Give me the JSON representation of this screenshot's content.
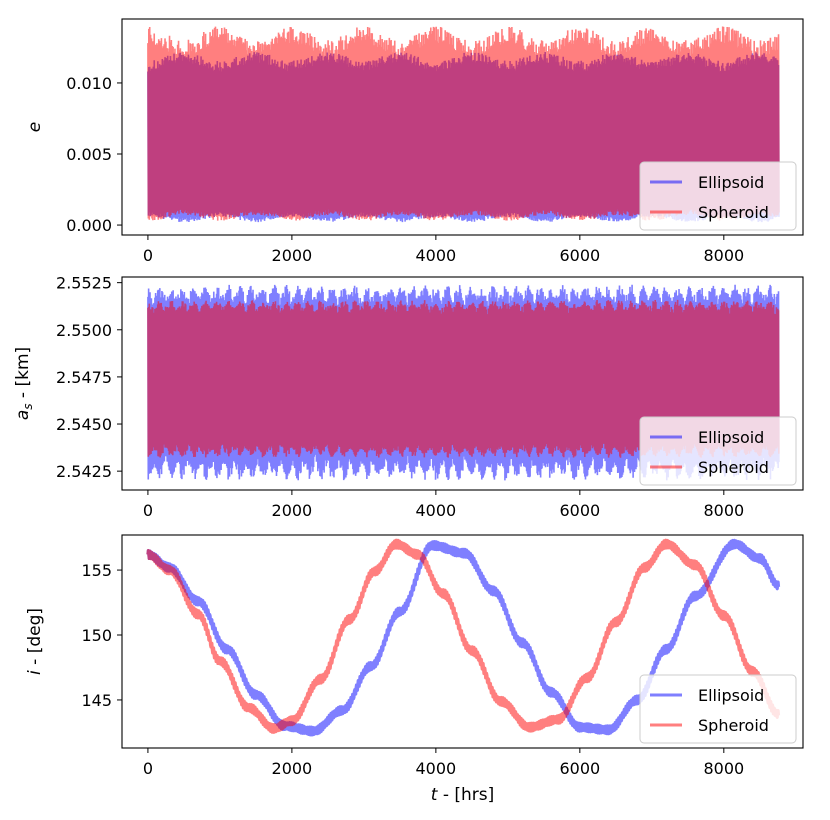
{
  "chart_data": [
    {
      "id": "eccentricity",
      "type": "line",
      "xlabel": "",
      "ylabel": "e",
      "xlim": [
        -360,
        9100
      ],
      "ylim": [
        -0.0007,
        0.0145
      ],
      "x_ticks": [
        0,
        2000,
        4000,
        6000,
        8000
      ],
      "x_tick_labels": [
        "0",
        "2000",
        "4000",
        "6000",
        "8000"
      ],
      "y_ticks": [
        0.0,
        0.005,
        0.01
      ],
      "y_tick_labels": [
        "0.000",
        "0.005",
        "0.010"
      ],
      "legend_position": "lower-right",
      "band_model": {
        "t_end": 8760,
        "period": 1.6,
        "beat_period": 1000,
        "samples": 700
      },
      "series": [
        {
          "name": "Ellipsoid",
          "color": "#0000ff",
          "alpha": 0.5,
          "min_lo": 0.0002,
          "min_hi": 0.0009,
          "max_lo": 0.0108,
          "max_hi": 0.0122,
          "phase": 0.5
        },
        {
          "name": "Spheroid",
          "color": "#ff0000",
          "alpha": 0.5,
          "min_lo": 0.0003,
          "min_hi": 0.0011,
          "max_lo": 0.0118,
          "max_hi": 0.014,
          "phase": 0.0
        }
      ]
    },
    {
      "id": "semi-major-axis",
      "type": "line",
      "xlabel": "",
      "ylabel": "a_s - [km]",
      "xlim": [
        -360,
        9100
      ],
      "ylim": [
        2.5415,
        2.5528
      ],
      "x_ticks": [
        0,
        2000,
        4000,
        6000,
        8000
      ],
      "x_tick_labels": [
        "0",
        "2000",
        "4000",
        "6000",
        "8000"
      ],
      "y_ticks": [
        2.5425,
        2.545,
        2.5475,
        2.55,
        2.5525
      ],
      "y_tick_labels": [
        "2.5425",
        "2.5450",
        "2.5475",
        "2.5500",
        "2.5525"
      ],
      "legend_position": "lower-right",
      "band_model": {
        "t_end": 8760,
        "period": 1.6,
        "beat_period": 160,
        "samples": 900
      },
      "series": [
        {
          "name": "Ellipsoid",
          "color": "#0000ff",
          "alpha": 0.5,
          "max_lo": 2.5512,
          "max_hi": 2.5524,
          "min_lo": 2.542,
          "min_hi": 2.5434
        },
        {
          "name": "Spheroid",
          "color": "#ff0000",
          "alpha": 0.5,
          "max_lo": 2.5508,
          "max_hi": 2.5516,
          "min_lo": 2.5432,
          "min_hi": 2.544
        }
      ]
    },
    {
      "id": "inclination",
      "type": "line",
      "xlabel": "t - [hrs]",
      "ylabel": "i - [deg]",
      "xlim": [
        -360,
        9100
      ],
      "ylim": [
        141.3,
        157.7
      ],
      "x_ticks": [
        0,
        2000,
        4000,
        6000,
        8000
      ],
      "x_tick_labels": [
        "0",
        "2000",
        "4000",
        "6000",
        "8000"
      ],
      "y_ticks": [
        145,
        150,
        155
      ],
      "y_tick_labels": [
        "145",
        "150",
        "155"
      ],
      "legend_position": "lower-right",
      "series": [
        {
          "name": "Ellipsoid",
          "color": "#0000ff",
          "alpha": 0.5,
          "x": [
            0,
            300,
            700,
            1100,
            1500,
            1900,
            2300,
            2700,
            3100,
            3500,
            3950,
            4400,
            4800,
            5200,
            5600,
            6000,
            6400,
            6800,
            7200,
            7600,
            8150,
            8500,
            8760
          ],
          "y": [
            156.2,
            155.2,
            152.6,
            148.9,
            145.4,
            143.0,
            142.6,
            144.2,
            147.6,
            151.8,
            156.9,
            156.3,
            153.4,
            149.4,
            145.6,
            142.9,
            142.7,
            145.0,
            148.9,
            153.0,
            157.0,
            155.9,
            153.8
          ],
          "ripple": 0.3
        },
        {
          "name": "Spheroid",
          "color": "#ff0000",
          "alpha": 0.5,
          "x": [
            0,
            300,
            700,
            1000,
            1400,
            1750,
            2000,
            2400,
            2800,
            3150,
            3450,
            3750,
            4100,
            4500,
            4900,
            5300,
            5700,
            6100,
            6500,
            6900,
            7200,
            7600,
            8000,
            8400,
            8760
          ],
          "y": [
            156.2,
            155.0,
            151.6,
            148.0,
            144.4,
            142.8,
            143.4,
            146.6,
            151.2,
            154.9,
            157.0,
            156.2,
            153.2,
            148.8,
            144.9,
            142.9,
            143.5,
            146.7,
            151.0,
            155.2,
            157.0,
            155.4,
            151.5,
            147.2,
            143.9
          ],
          "ripple": 0.3
        }
      ]
    }
  ]
}
